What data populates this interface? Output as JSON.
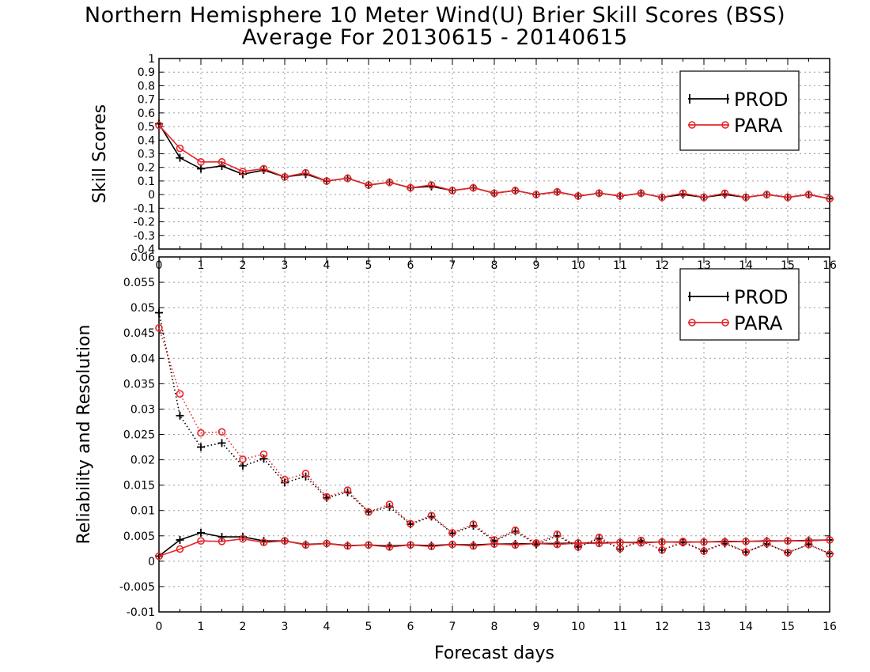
{
  "title": "Northern Hemisphere 10 Meter Wind(U) Brier Skill Scores (BSS)",
  "subtitle": "Average For 20130615 - 20140615",
  "colors": {
    "prod": "#000000",
    "para": "#e8262a",
    "grid": "#9a9a9a"
  },
  "chart_data": [
    {
      "type": "line",
      "ylabel": "Skill Scores",
      "xlabel": "",
      "xlim": [
        0,
        16
      ],
      "ylim": [
        -0.4,
        1
      ],
      "x_ticks": [
        0,
        1,
        2,
        3,
        4,
        5,
        6,
        7,
        8,
        9,
        10,
        11,
        12,
        13,
        14,
        15,
        16
      ],
      "y_ticks": [
        -0.4,
        -0.3,
        -0.2,
        -0.1,
        0,
        0.1,
        0.2,
        0.3,
        0.4,
        0.5,
        0.6,
        0.7,
        0.8,
        0.9,
        1
      ],
      "y_tick_labels": [
        "-0.4",
        "-0.3",
        "-0.2",
        "-0.1",
        "0",
        "0.1",
        "0.2",
        "0.3",
        "0.4",
        "0.5",
        "0.6",
        "0.7",
        "0.8",
        "0.9",
        "1"
      ],
      "grid": true,
      "legend": "top-right",
      "x": [
        0,
        0.5,
        1,
        1.5,
        2,
        2.5,
        3,
        3.5,
        4,
        4.5,
        5,
        5.5,
        6,
        6.5,
        7,
        7.5,
        8,
        8.5,
        9,
        9.5,
        10,
        10.5,
        11,
        11.5,
        12,
        12.5,
        13,
        13.5,
        14,
        14.5,
        15,
        15.5,
        16
      ],
      "series": [
        {
          "name": "PROD",
          "marker": "plus",
          "style": "solid",
          "values": [
            0.52,
            0.27,
            0.19,
            0.21,
            0.15,
            0.18,
            0.13,
            0.15,
            0.1,
            0.12,
            0.07,
            0.09,
            0.05,
            0.06,
            0.03,
            0.05,
            0.01,
            0.03,
            0.0,
            0.02,
            -0.01,
            0.01,
            -0.01,
            0.01,
            -0.02,
            0.0,
            -0.02,
            0.0,
            -0.02,
            0.0,
            -0.02,
            0.0,
            -0.03
          ]
        },
        {
          "name": "PARA",
          "marker": "circle",
          "style": "solid",
          "values": [
            0.51,
            0.34,
            0.24,
            0.24,
            0.17,
            0.19,
            0.13,
            0.16,
            0.1,
            0.12,
            0.07,
            0.09,
            0.05,
            0.07,
            0.03,
            0.05,
            0.01,
            0.03,
            0.0,
            0.02,
            -0.01,
            0.01,
            -0.01,
            0.01,
            -0.02,
            0.01,
            -0.02,
            0.01,
            -0.02,
            0.0,
            -0.02,
            0.0,
            -0.03
          ]
        }
      ]
    },
    {
      "type": "line",
      "ylabel": "Reliability and Resolution",
      "xlabel": "Forecast days",
      "xlim": [
        0,
        16
      ],
      "ylim": [
        -0.01,
        0.06
      ],
      "x_ticks": [
        0,
        1,
        2,
        3,
        4,
        5,
        6,
        7,
        8,
        9,
        10,
        11,
        12,
        13,
        14,
        15,
        16
      ],
      "y_ticks": [
        -0.01,
        -0.005,
        0,
        0.005,
        0.01,
        0.015,
        0.02,
        0.025,
        0.03,
        0.035,
        0.04,
        0.045,
        0.05,
        0.055,
        0.06
      ],
      "y_tick_labels": [
        "-0.01",
        "-0.005",
        "0",
        "0.005",
        "0.01",
        "0.015",
        "0.02",
        "0.025",
        "0.03",
        "0.035",
        "0.04",
        "0.045",
        "0.05",
        "0.055",
        "0.06"
      ],
      "grid": true,
      "legend": "top-right",
      "x": [
        0,
        0.5,
        1,
        1.5,
        2,
        2.5,
        3,
        3.5,
        4,
        4.5,
        5,
        5.5,
        6,
        6.5,
        7,
        7.5,
        8,
        8.5,
        9,
        9.5,
        10,
        10.5,
        11,
        11.5,
        12,
        12.5,
        13,
        13.5,
        14,
        14.5,
        15,
        15.5,
        16
      ],
      "series": [
        {
          "name": "PROD",
          "component": "reliability",
          "marker": "plus",
          "style": "solid",
          "values": [
            0.001,
            0.0042,
            0.0056,
            0.0048,
            0.0048,
            0.004,
            0.004,
            0.0033,
            0.0035,
            0.0031,
            0.0032,
            0.003,
            0.0032,
            0.0031,
            0.0033,
            0.0032,
            0.0034,
            0.0034,
            0.0035,
            0.0035,
            0.0036,
            0.0036,
            0.0037,
            0.0037,
            0.0038,
            0.0038,
            0.0038,
            0.0039,
            0.0039,
            0.004,
            0.004,
            0.0041,
            0.0042
          ]
        },
        {
          "name": "PARA",
          "component": "reliability",
          "marker": "circle",
          "style": "solid",
          "values": [
            0.001,
            0.0024,
            0.004,
            0.0039,
            0.0044,
            0.0037,
            0.004,
            0.0032,
            0.0035,
            0.003,
            0.0032,
            0.0028,
            0.0032,
            0.0029,
            0.0033,
            0.003,
            0.0034,
            0.0032,
            0.0035,
            0.0033,
            0.0036,
            0.0035,
            0.0037,
            0.0036,
            0.0038,
            0.0037,
            0.0038,
            0.0038,
            0.0039,
            0.0039,
            0.004,
            0.004,
            0.0042
          ]
        },
        {
          "name": "PROD",
          "component": "resolution",
          "marker": "plus",
          "style": "dotted",
          "values": [
            0.049,
            0.0287,
            0.0225,
            0.0233,
            0.0188,
            0.0202,
            0.0155,
            0.0167,
            0.0125,
            0.0136,
            0.0097,
            0.0107,
            0.0073,
            0.0088,
            0.0055,
            0.007,
            0.004,
            0.0059,
            0.0033,
            0.005,
            0.0028,
            0.0045,
            0.0024,
            0.004,
            0.0022,
            0.0037,
            0.002,
            0.0035,
            0.0018,
            0.0034,
            0.0017,
            0.0033,
            0.0015
          ]
        },
        {
          "name": "PARA",
          "component": "resolution",
          "marker": "circle",
          "style": "dotted",
          "values": [
            0.046,
            0.033,
            0.0253,
            0.0255,
            0.0201,
            0.0211,
            0.0161,
            0.0173,
            0.0127,
            0.014,
            0.0097,
            0.0112,
            0.0074,
            0.009,
            0.0056,
            0.0073,
            0.0042,
            0.0061,
            0.0036,
            0.0053,
            0.0028,
            0.0047,
            0.0025,
            0.0041,
            0.0022,
            0.0039,
            0.002,
            0.0037,
            0.0018,
            0.0035,
            0.0017,
            0.0033,
            0.0014
          ]
        }
      ]
    }
  ]
}
